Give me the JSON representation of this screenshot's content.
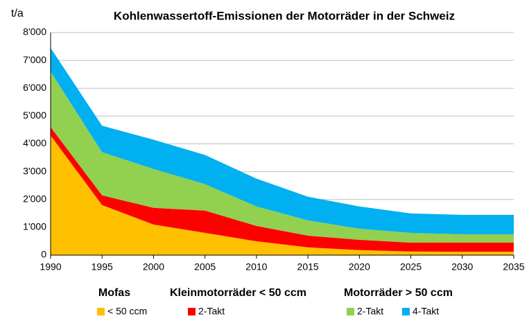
{
  "chart_data": {
    "type": "stacked_area",
    "title": "Kohlenwassertoff-Emissionen der Motorräder in der Schweiz",
    "y_label": "t/a",
    "x": [
      1990,
      1995,
      2000,
      2005,
      2010,
      2015,
      2020,
      2025,
      2030,
      2035
    ],
    "xlim": [
      1990,
      2035
    ],
    "xticks": [
      1990,
      1995,
      2000,
      2005,
      2010,
      2015,
      2020,
      2025,
      2030,
      2035
    ],
    "ylim": [
      0,
      8000
    ],
    "yticks": [
      0,
      {
        "value": 1000,
        "label": "1'000"
      },
      {
        "value": 2000,
        "label": "2'000"
      },
      {
        "value": 3000,
        "label": "3'000"
      },
      {
        "value": 4000,
        "label": "4'000"
      },
      {
        "value": 5000,
        "label": "5'000"
      },
      {
        "value": 6000,
        "label": "6'000"
      },
      {
        "value": 7000,
        "label": "7'000"
      },
      {
        "value": 8000,
        "label": "8'000"
      }
    ],
    "grid": true,
    "legend_groups": [
      "Mofas",
      "Kleinmotorräder < 50 ccm",
      "Motorräder > 50 ccm"
    ],
    "series": [
      {
        "name": "< 50 ccm",
        "color": "#ffc000",
        "values": [
          4300,
          1800,
          1100,
          800,
          500,
          280,
          180,
          130,
          120,
          120
        ]
      },
      {
        "name": "2-Takt",
        "color": "#ff0000",
        "values": [
          300,
          350,
          600,
          800,
          550,
          420,
          370,
          320,
          330,
          330
        ]
      },
      {
        "name": "2-Takt",
        "color": "#92d050",
        "values": [
          2000,
          1550,
          1400,
          950,
          700,
          550,
          400,
          350,
          300,
          300
        ]
      },
      {
        "name": "4-Takt",
        "color": "#00b0f0",
        "values": [
          850,
          950,
          1050,
          1050,
          1000,
          850,
          800,
          700,
          700,
          700
        ]
      }
    ]
  }
}
